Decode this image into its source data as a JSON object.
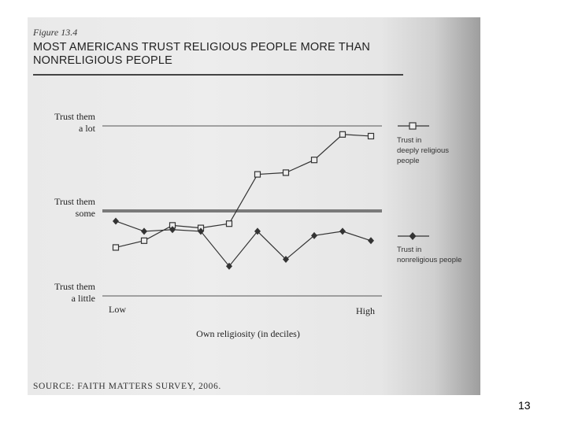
{
  "figure_label": "Figure 13.4",
  "page_number": "13",
  "source": "SOURCE: FAITH MATTERS SURVEY, 2006.",
  "chart_data": {
    "type": "line",
    "title": "MOST AMERICANS TRUST RELIGIOUS PEOPLE MORE THAN NONRELIGIOUS PEOPLE",
    "xlabel": "Own religiosity (in deciles)",
    "ylabel": "",
    "x_tick_labels": [
      "Low",
      "High"
    ],
    "y_tick_labels": [
      "Trust them a little",
      "Trust them some",
      "Trust them a lot"
    ],
    "x": [
      1,
      2,
      3,
      4,
      5,
      6,
      7,
      8,
      9,
      10
    ],
    "ylim": [
      1,
      3
    ],
    "reference_line": 2.0,
    "series": [
      {
        "name": "Trust in deeply religious people",
        "marker": "square",
        "values": [
          1.57,
          1.65,
          1.83,
          1.8,
          1.85,
          2.43,
          2.45,
          2.6,
          2.9,
          2.88
        ]
      },
      {
        "name": "Trust in nonreligious people",
        "marker": "diamond",
        "values": [
          1.88,
          1.76,
          1.78,
          1.76,
          1.35,
          1.76,
          1.43,
          1.71,
          1.76,
          1.65
        ]
      }
    ],
    "legend_position": "right",
    "grid": false
  }
}
